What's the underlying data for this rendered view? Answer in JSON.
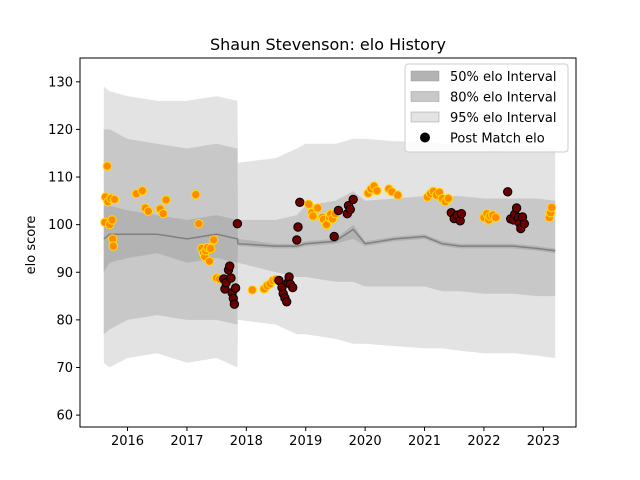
{
  "chart_data": {
    "type": "scatter",
    "title": "Shaun Stevenson: elo History",
    "xlabel": "",
    "ylabel": "elo score",
    "xlim": [
      2015.2,
      2023.55
    ],
    "ylim": [
      57.5,
      135
    ],
    "xticks": [
      2016,
      2017,
      2018,
      2019,
      2020,
      2021,
      2022,
      2023
    ],
    "yticks": [
      60,
      70,
      80,
      90,
      100,
      110,
      120,
      130
    ],
    "legend_position": "top-right",
    "legend": [
      {
        "label": "50% elo Interval",
        "kind": "band",
        "color": "#b3b3b3"
      },
      {
        "label": "80% elo Interval",
        "kind": "band",
        "color": "#c8c8c8"
      },
      {
        "label": "95% elo Interval",
        "kind": "band",
        "color": "#e3e3e3"
      },
      {
        "label": "Post Match elo",
        "kind": "marker",
        "color": "#000000"
      }
    ],
    "colors": {
      "win_fill": "#ff8c00",
      "win_edge": "#ffdd00",
      "loss_fill": "#6b0000",
      "loss_edge": "#000000",
      "median_line": "#808080",
      "band50": "#b3b3b3",
      "band80": "#c8c8c8",
      "band95": "#e3e3e3"
    },
    "interval": {
      "x": [
        2015.6,
        2015.7,
        2016.0,
        2016.5,
        2017.0,
        2017.5,
        2017.85,
        2017.86,
        2018.5,
        2018.85,
        2019.0,
        2019.5,
        2019.8,
        2020.0,
        2020.5,
        2021.0,
        2021.3,
        2021.6,
        2022.0,
        2022.5,
        2022.9,
        2023.2
      ],
      "median": [
        97,
        98,
        98,
        98,
        97,
        98,
        97,
        96,
        95.5,
        95.5,
        96,
        96.5,
        99,
        96,
        97,
        97.5,
        96,
        95.5,
        95.5,
        95.5,
        95,
        94.5
      ],
      "lo50": [
        90,
        92,
        93,
        94,
        92,
        93,
        92,
        95.5,
        95,
        95,
        95.5,
        96,
        97,
        95.5,
        96.5,
        97,
        95.5,
        95,
        95,
        95,
        94.5,
        94
      ],
      "hi50": [
        104,
        104,
        103,
        102,
        101,
        102,
        101,
        97,
        96,
        96,
        96.5,
        97,
        100,
        96.5,
        97.5,
        98,
        96.5,
        96,
        96,
        96,
        95.5,
        95
      ],
      "lo80": [
        77,
        78,
        80,
        81,
        80,
        80,
        79,
        92,
        90,
        89,
        89,
        88,
        88,
        87,
        87,
        87,
        86,
        86,
        85.5,
        85.5,
        85,
        85
      ],
      "hi80": [
        120,
        120,
        118,
        117,
        116,
        117,
        116,
        101,
        101,
        102,
        104,
        105,
        107,
        105,
        105.5,
        106,
        106,
        106,
        105.5,
        105.5,
        105.5,
        105
      ],
      "lo95": [
        71,
        70,
        72,
        73,
        71,
        72,
        70,
        80,
        79,
        77,
        77,
        76,
        75,
        75,
        74.5,
        74,
        74,
        73.5,
        73,
        73,
        72.5,
        72
      ],
      "hi95": [
        129,
        128,
        127,
        126,
        126,
        127,
        126,
        113,
        114,
        116,
        117,
        117,
        118,
        118,
        117.5,
        117.5,
        117,
        117,
        117,
        116.5,
        116.5,
        116
      ]
    },
    "series": [
      {
        "name": "Post Match elo",
        "points": [
          [
            2015.62,
            100.5,
            "w"
          ],
          [
            2015.63,
            105.8,
            "w"
          ],
          [
            2015.66,
            112.3,
            "w"
          ],
          [
            2015.67,
            104.8,
            "w"
          ],
          [
            2015.7,
            100,
            "w"
          ],
          [
            2015.72,
            105.5,
            "w"
          ],
          [
            2015.74,
            101,
            "w"
          ],
          [
            2015.75,
            97,
            "w"
          ],
          [
            2015.76,
            95.5,
            "w"
          ],
          [
            2015.78,
            105.3,
            "w"
          ],
          [
            2016.15,
            106.5,
            "w"
          ],
          [
            2016.25,
            107.1,
            "w"
          ],
          [
            2016.3,
            103.5,
            "w"
          ],
          [
            2016.35,
            102.8,
            "w"
          ],
          [
            2016.55,
            103.3,
            "w"
          ],
          [
            2016.6,
            102.3,
            "w"
          ],
          [
            2016.65,
            105.2,
            "w"
          ],
          [
            2017.15,
            106.3,
            "w"
          ],
          [
            2017.2,
            100.2,
            "w"
          ],
          [
            2017.25,
            95,
            "w"
          ],
          [
            2017.28,
            94,
            "w"
          ],
          [
            2017.3,
            93.3,
            "w"
          ],
          [
            2017.32,
            94.5,
            "w"
          ],
          [
            2017.35,
            95.2,
            "w"
          ],
          [
            2017.38,
            92.3,
            "w"
          ],
          [
            2017.4,
            95,
            "w"
          ],
          [
            2017.45,
            96.8,
            "w"
          ],
          [
            2017.5,
            88.8,
            "w"
          ],
          [
            2017.55,
            88.6,
            "w"
          ],
          [
            2017.62,
            88.6,
            "l"
          ],
          [
            2017.64,
            86.5,
            "l"
          ],
          [
            2017.66,
            87.8,
            "l"
          ],
          [
            2017.7,
            90.5,
            "l"
          ],
          [
            2017.72,
            91.3,
            "l"
          ],
          [
            2017.74,
            88.8,
            "l"
          ],
          [
            2017.76,
            85.7,
            "l"
          ],
          [
            2017.78,
            84.5,
            "l"
          ],
          [
            2017.8,
            83.3,
            "l"
          ],
          [
            2017.82,
            86.7,
            "l"
          ],
          [
            2017.85,
            100.2,
            "l"
          ],
          [
            2018.1,
            86.3,
            "w"
          ],
          [
            2018.3,
            86.5,
            "w"
          ],
          [
            2018.35,
            87.2,
            "w"
          ],
          [
            2018.4,
            87.6,
            "w"
          ],
          [
            2018.45,
            88.3,
            "w"
          ],
          [
            2018.5,
            88.5,
            "w"
          ],
          [
            2018.55,
            88.3,
            "l"
          ],
          [
            2018.6,
            86.8,
            "l"
          ],
          [
            2018.62,
            85.5,
            "l"
          ],
          [
            2018.65,
            84.6,
            "l"
          ],
          [
            2018.68,
            83.8,
            "l"
          ],
          [
            2018.7,
            87.8,
            "l"
          ],
          [
            2018.72,
            89,
            "l"
          ],
          [
            2018.74,
            87.5,
            "l"
          ],
          [
            2018.78,
            86.8,
            "l"
          ],
          [
            2018.85,
            96.8,
            "l"
          ],
          [
            2018.87,
            99.5,
            "l"
          ],
          [
            2018.9,
            104.7,
            "l"
          ],
          [
            2019.05,
            104.3,
            "w"
          ],
          [
            2019.1,
            102.5,
            "w"
          ],
          [
            2019.12,
            101.8,
            "w"
          ],
          [
            2019.2,
            103.5,
            "w"
          ],
          [
            2019.28,
            101.5,
            "w"
          ],
          [
            2019.3,
            101.1,
            "w"
          ],
          [
            2019.35,
            100,
            "w"
          ],
          [
            2019.4,
            101.5,
            "w"
          ],
          [
            2019.42,
            102.2,
            "w"
          ],
          [
            2019.45,
            101.2,
            "w"
          ],
          [
            2019.5,
            102.3,
            "w"
          ],
          [
            2019.48,
            97.5,
            "l"
          ],
          [
            2019.55,
            103,
            "l"
          ],
          [
            2019.7,
            102.3,
            "l"
          ],
          [
            2019.72,
            104,
            "l"
          ],
          [
            2019.75,
            103.2,
            "l"
          ],
          [
            2019.8,
            105.3,
            "l"
          ],
          [
            2020.05,
            106.6,
            "w"
          ],
          [
            2020.1,
            107.5,
            "w"
          ],
          [
            2020.15,
            108.1,
            "w"
          ],
          [
            2020.2,
            107.1,
            "w"
          ],
          [
            2020.4,
            107.5,
            "w"
          ],
          [
            2020.45,
            106.9,
            "w"
          ],
          [
            2020.55,
            106.2,
            "w"
          ],
          [
            2021.05,
            105.8,
            "w"
          ],
          [
            2021.1,
            106.5,
            "w"
          ],
          [
            2021.15,
            107,
            "w"
          ],
          [
            2021.2,
            106.2,
            "w"
          ],
          [
            2021.25,
            106.8,
            "w"
          ],
          [
            2021.3,
            105.5,
            "w"
          ],
          [
            2021.35,
            104.8,
            "w"
          ],
          [
            2021.4,
            105.5,
            "w"
          ],
          [
            2021.45,
            102.3,
            "w"
          ],
          [
            2021.45,
            102.5,
            "l"
          ],
          [
            2021.5,
            101.3,
            "l"
          ],
          [
            2021.55,
            102,
            "l"
          ],
          [
            2021.6,
            100.8,
            "l"
          ],
          [
            2021.62,
            102.3,
            "l"
          ],
          [
            2022.0,
            101.5,
            "w"
          ],
          [
            2022.05,
            102.3,
            "w"
          ],
          [
            2022.08,
            101,
            "w"
          ],
          [
            2022.1,
            101.8,
            "w"
          ],
          [
            2022.15,
            102,
            "w"
          ],
          [
            2022.2,
            101.5,
            "w"
          ],
          [
            2022.4,
            106.9,
            "l"
          ],
          [
            2022.45,
            101.2,
            "l"
          ],
          [
            2022.5,
            101,
            "l"
          ],
          [
            2022.52,
            102.2,
            "l"
          ],
          [
            2022.55,
            103.5,
            "l"
          ],
          [
            2022.58,
            101.5,
            "l"
          ],
          [
            2022.6,
            100.3,
            "l"
          ],
          [
            2022.62,
            99.2,
            "l"
          ],
          [
            2022.65,
            101.6,
            "l"
          ],
          [
            2022.68,
            100.2,
            "l"
          ],
          [
            2023.1,
            101.5,
            "w"
          ],
          [
            2023.12,
            102.5,
            "w"
          ],
          [
            2023.14,
            103.6,
            "w"
          ]
        ]
      }
    ]
  }
}
